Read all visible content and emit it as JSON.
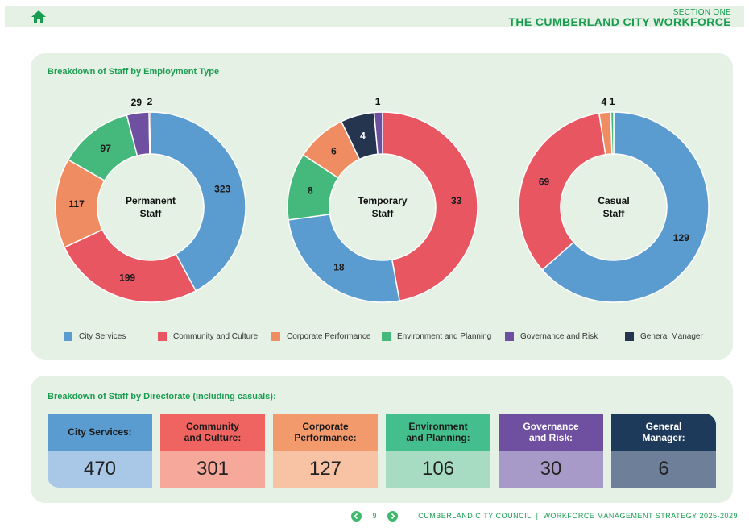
{
  "header": {
    "section_label": "SECTION ONE",
    "section_title": "THE CUMBERLAND CITY WORKFORCE",
    "home_icon": "home-icon"
  },
  "employment_panel": {
    "title": "Breakdown of Staff by Employment Type"
  },
  "directorates": [
    {
      "name": "City Services",
      "color": "#5a9bd0"
    },
    {
      "name": "Community and Culture",
      "color": "#e85662"
    },
    {
      "name": "Corporate Performance",
      "color": "#ef8c61"
    },
    {
      "name": "Environment and Planning",
      "color": "#44b97b"
    },
    {
      "name": "Governance and Risk",
      "color": "#6f50a0"
    },
    {
      "name": "General Manager",
      "color": "#26354f"
    }
  ],
  "chart_data": [
    {
      "type": "pie",
      "title": "Permanent Staff",
      "title_lines": [
        "Permanent",
        "Staff"
      ],
      "categories": [
        "City Services",
        "Community and Culture",
        "Corporate Performance",
        "Environment and Planning",
        "Governance and Risk",
        "General Manager"
      ],
      "values": [
        323,
        199,
        117,
        97,
        29,
        2
      ]
    },
    {
      "type": "pie",
      "title": "Temporary Staff",
      "title_lines": [
        "Temporary",
        "Staff"
      ],
      "categories": [
        "City Services",
        "Community and Culture",
        "Corporate Performance",
        "Environment and Planning",
        "Governance and Risk",
        "General Manager"
      ],
      "values": [
        18,
        33,
        6,
        8,
        1,
        4
      ],
      "order": [
        "Community and Culture",
        "City Services",
        "Environment and Planning",
        "Corporate Performance",
        "General Manager",
        "Governance and Risk"
      ]
    },
    {
      "type": "pie",
      "title": "Casual Staff",
      "title_lines": [
        "Casual",
        "Staff"
      ],
      "categories": [
        "City Services",
        "Community and Culture",
        "Corporate Performance",
        "Environment and Planning"
      ],
      "values": [
        129,
        69,
        4,
        1
      ]
    }
  ],
  "directorate_panel": {
    "title": "Breakdown of Staff by Directorate (including casuals):",
    "cards": [
      {
        "label": "City Services:",
        "value": "470",
        "head_color": "#5a9bd0",
        "body_color": "#a9c8e8",
        "head_text": "#1a1a1a",
        "body_text": "#222222"
      },
      {
        "label": "Community\nand Culture:",
        "value": "301",
        "head_color": "#ef6360",
        "body_color": "#f6a89a",
        "head_text": "#1a1a1a",
        "body_text": "#222222"
      },
      {
        "label": "Corporate\nPerformance:",
        "value": "127",
        "head_color": "#f39a6c",
        "body_color": "#f8c3a4",
        "head_text": "#1a1a1a",
        "body_text": "#222222"
      },
      {
        "label": "Environment\nand Planning:",
        "value": "106",
        "head_color": "#44be8c",
        "body_color": "#a8dcc2",
        "head_text": "#1a1a1a",
        "body_text": "#222222"
      },
      {
        "label": "Governance\nand Risk:",
        "value": "30",
        "head_color": "#6f50a0",
        "body_color": "#a89ac8",
        "head_text": "#ffffff",
        "body_text": "#222222"
      },
      {
        "label": "General\nManager:",
        "value": "6",
        "head_color": "#1e3a5a",
        "body_color": "#6e7f99",
        "head_text": "#ffffff",
        "body_text": "#222222"
      }
    ]
  },
  "footer": {
    "page_number": "9",
    "org": "CUMBERLAND CITY COUNCIL",
    "separator": "|",
    "doc": "WORKFORCE MANAGEMENT STRATEGY 2025-2029",
    "prev_icon": "chevron-left-icon",
    "next_icon": "chevron-right-icon"
  }
}
